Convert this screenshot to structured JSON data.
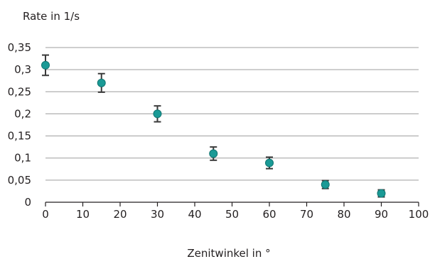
{
  "chart_data": {
    "type": "scatter",
    "title": "",
    "xlabel": "Zenitwinkel in °",
    "ylabel": "Rate in 1/s",
    "xlim": [
      0,
      100
    ],
    "ylim": [
      0,
      0.35
    ],
    "x_ticks": [
      0,
      10,
      20,
      30,
      40,
      50,
      60,
      70,
      80,
      90,
      100
    ],
    "x_tick_labels": [
      "0",
      "10",
      "20",
      "30",
      "40",
      "50",
      "60",
      "70",
      "80",
      "90",
      "100"
    ],
    "y_ticks": [
      0,
      0.05,
      0.1,
      0.15,
      0.2,
      0.25,
      0.3,
      0.35
    ],
    "y_tick_labels": [
      "0",
      "0,05",
      "0,1",
      "0,15",
      "0,2",
      "0,25",
      "0,3",
      "0,35"
    ],
    "grid": "horizontal",
    "colors": {
      "marker": "#1a9a96",
      "marker_edge": "#117470",
      "error_bar": "#3a3a3a",
      "grid": "#9e9e9e",
      "axis": "#231f20"
    },
    "series": [
      {
        "x": [
          0,
          15,
          30,
          45,
          60,
          75,
          90
        ],
        "y": [
          0.31,
          0.27,
          0.2,
          0.11,
          0.089,
          0.04,
          0.02
        ],
        "error": [
          0.023,
          0.021,
          0.018,
          0.015,
          0.013,
          0.009,
          0.008
        ]
      }
    ]
  }
}
